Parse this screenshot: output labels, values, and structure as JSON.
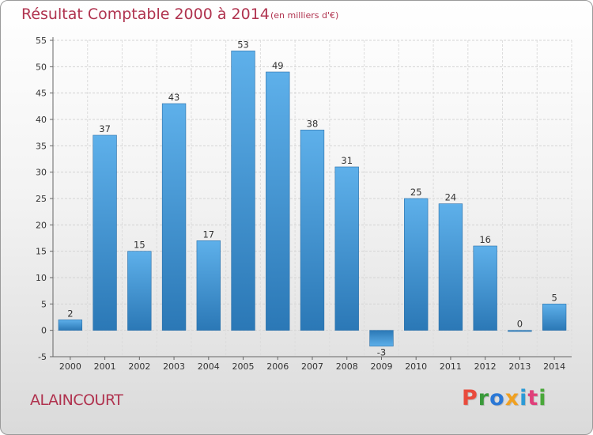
{
  "header": {
    "title": "Résultat Comptable 2000 à 2014",
    "subtitle": "(en milliers d'€)"
  },
  "footer": {
    "commune": "ALAINCOURT",
    "brand": "Proxiti"
  },
  "colors": {
    "title": "#b0334f",
    "bar_light": "#5eb0ea",
    "bar_dark": "#2b78b6",
    "brand_letters": [
      "#e94b3c",
      "#3a9a3a",
      "#2b78d6",
      "#f0a020",
      "#2b9ad6",
      "#e03f7a",
      "#4aa83a"
    ]
  },
  "chart_data": {
    "type": "bar",
    "categories": [
      "2000",
      "2001",
      "2002",
      "2003",
      "2004",
      "2005",
      "2006",
      "2007",
      "2008",
      "2009",
      "2010",
      "2011",
      "2012",
      "2013",
      "2014"
    ],
    "values": [
      2,
      37,
      15,
      43,
      17,
      53,
      49,
      38,
      31,
      -3,
      25,
      24,
      16,
      0,
      5
    ],
    "ylim": [
      -5,
      55
    ],
    "yticks": [
      -5,
      0,
      5,
      10,
      15,
      20,
      25,
      30,
      35,
      40,
      45,
      50,
      55
    ],
    "xlabel": "",
    "ylabel": "",
    "grid": true
  }
}
